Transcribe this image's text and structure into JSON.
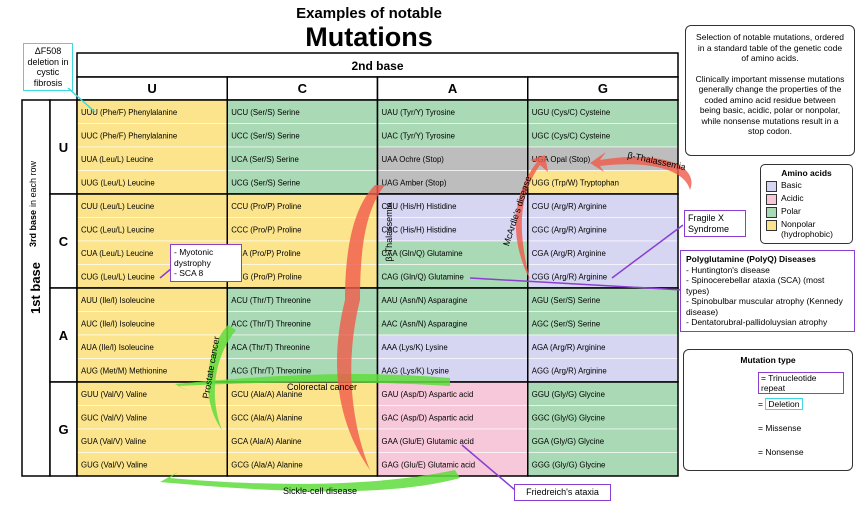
{
  "title": {
    "line1": "Examples of notable",
    "line2": "Mutations"
  },
  "table": {
    "header": "2nd base",
    "columns": [
      "U",
      "C",
      "A",
      "G"
    ],
    "first_base_label": "1st base",
    "third_base_label": {
      "bold": "3rd base",
      "rest": "in each row"
    },
    "rows": [
      {
        "base": "U",
        "cells": [
          [
            {
              "text": "UUU (Phe/F) Phenylalanine",
              "color": "#fbe48c"
            },
            {
              "text": "UUC (Phe/F) Phenylalanine",
              "color": "#fbe48c"
            },
            {
              "text": "UUA (Leu/L) Leucine",
              "color": "#fbe48c"
            },
            {
              "text": "UUG (Leu/L) Leucine",
              "color": "#fbe48c"
            }
          ],
          [
            {
              "text": "UCU (Ser/S) Serine",
              "color": "#a9d9b5"
            },
            {
              "text": "UCC (Ser/S) Serine",
              "color": "#a9d9b5"
            },
            {
              "text": "UCA (Ser/S) Serine",
              "color": "#a9d9b5"
            },
            {
              "text": "UCG (Ser/S) Serine",
              "color": "#a9d9b5"
            }
          ],
          [
            {
              "text": "UAU (Tyr/Y) Tyrosine",
              "color": "#a9d9b5"
            },
            {
              "text": "UAC (Tyr/Y) Tyrosine",
              "color": "#a9d9b5"
            },
            {
              "text": "UAA Ochre (Stop)",
              "color": "#bdbdbd"
            },
            {
              "text": "UAG Amber (Stop)",
              "color": "#bdbdbd"
            }
          ],
          [
            {
              "text": "UGU (Cys/C) Cysteine",
              "color": "#a9d9b5"
            },
            {
              "text": "UGC (Cys/C) Cysteine",
              "color": "#a9d9b5"
            },
            {
              "text": "UGA Opal (Stop)",
              "color": "#bdbdbd"
            },
            {
              "text": "UGG (Trp/W) Tryptophan",
              "color": "#fbe48c"
            }
          ]
        ]
      },
      {
        "base": "C",
        "cells": [
          [
            {
              "text": "CUU (Leu/L) Leucine",
              "color": "#fbe48c"
            },
            {
              "text": "CUC (Leu/L) Leucine",
              "color": "#fbe48c"
            },
            {
              "text": "CUA (Leu/L) Leucine",
              "color": "#fbe48c"
            },
            {
              "text": "CUG (Leu/L) Leucine",
              "color": "#fbe48c"
            }
          ],
          [
            {
              "text": "CCU (Pro/P) Proline",
              "color": "#fbe48c"
            },
            {
              "text": "CCC (Pro/P) Proline",
              "color": "#fbe48c"
            },
            {
              "text": "CCA (Pro/P) Proline",
              "color": "#fbe48c"
            },
            {
              "text": "CCG (Pro/P) Proline",
              "color": "#fbe48c"
            }
          ],
          [
            {
              "text": "CAU (His/H) Histidine",
              "color": "#d6d5f2"
            },
            {
              "text": "CAC (His/H) Histidine",
              "color": "#d6d5f2"
            },
            {
              "text": "CAA (Gln/Q) Glutamine",
              "color": "#a9d9b5"
            },
            {
              "text": "CAG (Gln/Q) Glutamine",
              "color": "#a9d9b5"
            }
          ],
          [
            {
              "text": "CGU (Arg/R) Arginine",
              "color": "#d6d5f2"
            },
            {
              "text": "CGC (Arg/R) Arginine",
              "color": "#d6d5f2"
            },
            {
              "text": "CGA (Arg/R) Arginine",
              "color": "#d6d5f2"
            },
            {
              "text": "CGG (Arg/R) Arginine",
              "color": "#d6d5f2"
            }
          ]
        ]
      },
      {
        "base": "A",
        "cells": [
          [
            {
              "text": "AUU (Ile/I) Isoleucine",
              "color": "#fbe48c"
            },
            {
              "text": "AUC (Ile/I) Isoleucine",
              "color": "#fbe48c"
            },
            {
              "text": "AUA (Ile/I) Isoleucine",
              "color": "#fbe48c"
            },
            {
              "text": "AUG (Met/M) Methionine",
              "color": "#fbe48c"
            }
          ],
          [
            {
              "text": "ACU (Thr/T) Threonine",
              "color": "#a9d9b5"
            },
            {
              "text": "ACC (Thr/T) Threonine",
              "color": "#a9d9b5"
            },
            {
              "text": "ACA (Thr/T) Threonine",
              "color": "#a9d9b5"
            },
            {
              "text": "ACG (Thr/T) Threonine",
              "color": "#a9d9b5"
            }
          ],
          [
            {
              "text": "AAU (Asn/N) Asparagine",
              "color": "#a9d9b5"
            },
            {
              "text": "AAC (Asn/N) Asparagine",
              "color": "#a9d9b5"
            },
            {
              "text": "AAA (Lys/K) Lysine",
              "color": "#d6d5f2"
            },
            {
              "text": "AAG (Lys/K) Lysine",
              "color": "#d6d5f2"
            }
          ],
          [
            {
              "text": "AGU (Ser/S) Serine",
              "color": "#a9d9b5"
            },
            {
              "text": "AGC (Ser/S) Serine",
              "color": "#a9d9b5"
            },
            {
              "text": "AGA (Arg/R) Arginine",
              "color": "#d6d5f2"
            },
            {
              "text": "AGG (Arg/R) Arginine",
              "color": "#d6d5f2"
            }
          ]
        ]
      },
      {
        "base": "G",
        "cells": [
          [
            {
              "text": "GUU (Val/V) Valine",
              "color": "#fbe48c"
            },
            {
              "text": "GUC (Val/V) Valine",
              "color": "#fbe48c"
            },
            {
              "text": "GUA (Val/V) Valine",
              "color": "#fbe48c"
            },
            {
              "text": "GUG (Val/V) Valine",
              "color": "#fbe48c"
            }
          ],
          [
            {
              "text": "GCU (Ala/A) Alanine",
              "color": "#fbe48c"
            },
            {
              "text": "GCC (Ala/A) Alanine",
              "color": "#fbe48c"
            },
            {
              "text": "GCA (Ala/A) Alanine",
              "color": "#fbe48c"
            },
            {
              "text": "GCG (Ala/A) Alanine",
              "color": "#fbe48c"
            }
          ],
          [
            {
              "text": "GAU (Asp/D) Aspartic acid",
              "color": "#f7c8d9"
            },
            {
              "text": "GAC (Asp/D) Aspartic acid",
              "color": "#f7c8d9"
            },
            {
              "text": "GAA (Glu/E) Glutamic acid",
              "color": "#f7c8d9"
            },
            {
              "text": "GAG (Glu/E) Glutamic acid",
              "color": "#f7c8d9"
            }
          ],
          [
            {
              "text": "GGU (Gly/G) Glycine",
              "color": "#a9d9b5"
            },
            {
              "text": "GGC (Gly/G) Glycine",
              "color": "#a9d9b5"
            },
            {
              "text": "GGA (Gly/G) Glycine",
              "color": "#a9d9b5"
            },
            {
              "text": "GGG (Gly/G) Glycine",
              "color": "#a9d9b5"
            }
          ]
        ]
      }
    ]
  },
  "annotations": {
    "deltaF508": "ΔF508 deletion in cystic fibrosis",
    "myotonic": [
      "- Myotonic dystrophy",
      "- SCA 8"
    ],
    "beta_thal": "β-Thalassemia",
    "mcardle": "McArdle's disease",
    "fragile_x": "Fragile X Syndrome",
    "prostate": "Prostate cancer",
    "colorectal": "Colorectal cancer",
    "sickle": "Sickle-cell disease",
    "friedreich": "Friedreich's ataxia"
  },
  "info": {
    "p1": "Selection of notable mutations, ordered in a standard table of the genetic code of amino acids.",
    "p2": "Clinically important missense mutations generally change the properties of the coded amino acid residue between being basic, acidic, polar or nonpolar, while nonsense mutations result in a stop codon."
  },
  "amino_legend": {
    "title": "Amino acids",
    "items": [
      {
        "label": "Basic",
        "color": "#d6d5f2"
      },
      {
        "label": "Acidic",
        "color": "#f7c8d9"
      },
      {
        "label": "Polar",
        "color": "#a9d9b5"
      },
      {
        "label": "Nonpolar (hydrophobic)",
        "color": "#fbe48c"
      }
    ]
  },
  "polyq": {
    "title": "Polyglutamine (PolyQ) Diseases",
    "items": [
      "- Huntington's disease",
      "- Spinocerebellar ataxia (SCA) (most types)",
      "- Spinobulbar muscular atrophy (Kennedy disease)",
      "- Dentatorubral-pallidoluysian atrophy"
    ]
  },
  "mutation_legend": {
    "title": "Mutation type",
    "items": [
      "Trinucleotide repeat",
      "Deletion",
      "Missense",
      "Nonsense"
    ]
  }
}
